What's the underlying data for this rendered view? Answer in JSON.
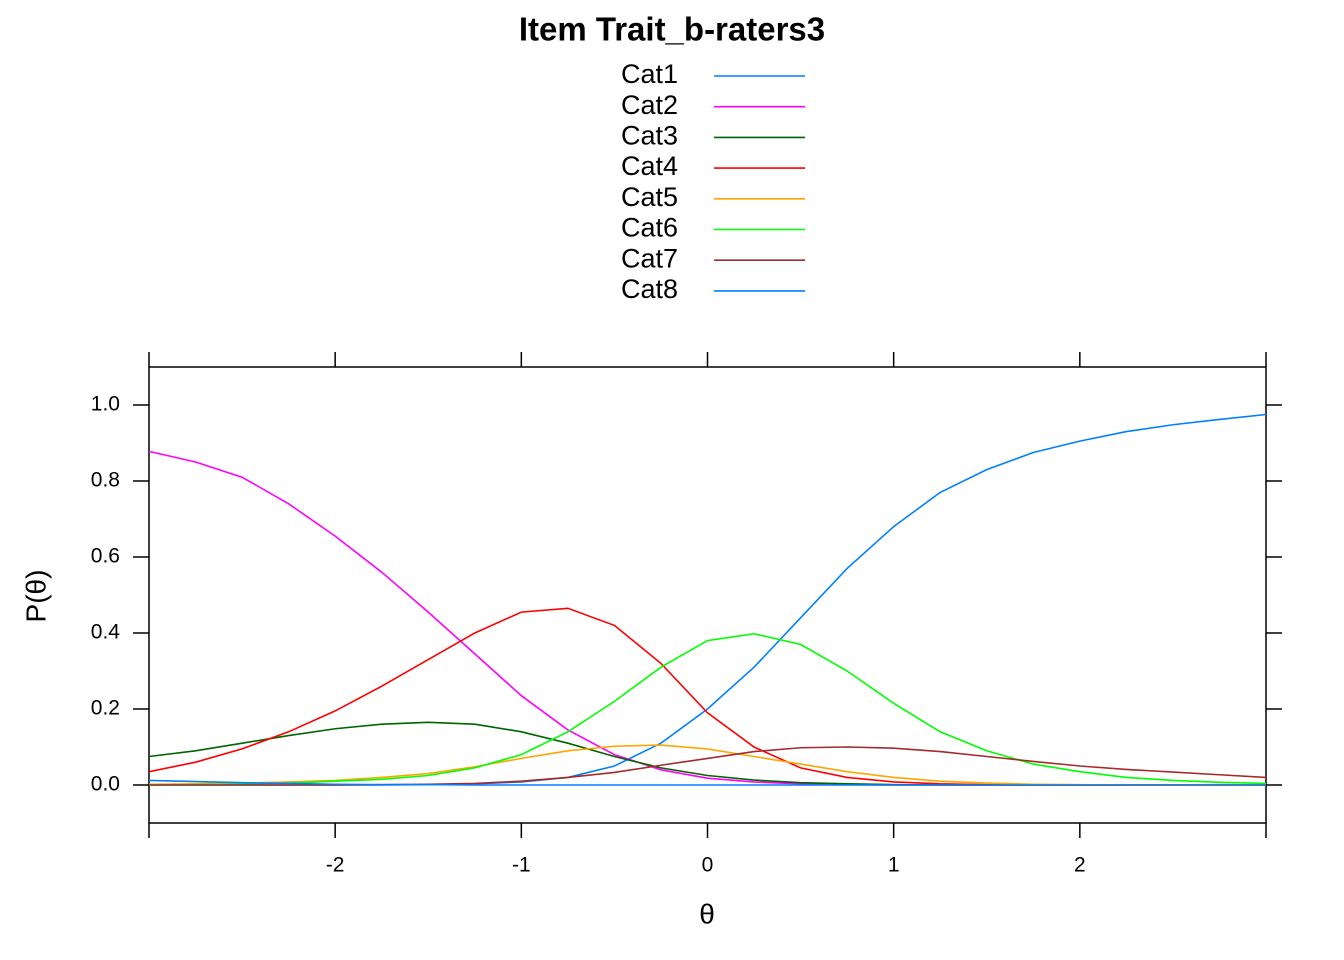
{
  "chart_data": {
    "type": "line",
    "title": "Item Trait_b-raters3",
    "x_label": "θ",
    "y_label": "P(θ)",
    "x": [
      -3,
      -2.75,
      -2.5,
      -2.25,
      -2,
      -1.75,
      -1.5,
      -1.25,
      -1,
      -0.75,
      -0.5,
      -0.25,
      0,
      0.25,
      0.5,
      0.75,
      1,
      1.25,
      1.5,
      1.75,
      2,
      2.25,
      2.5,
      2.75,
      3
    ],
    "series": [
      {
        "name": "Cat1",
        "color": "#0080ff",
        "values": [
          0,
          0,
          0,
          0,
          0,
          0,
          0.001,
          0.003,
          0.008,
          0.02,
          0.05,
          0.11,
          0.2,
          0.31,
          0.44,
          0.57,
          0.68,
          0.77,
          0.83,
          0.875,
          0.905,
          0.93,
          0.948,
          0.962,
          0.975
        ]
      },
      {
        "name": "Cat2",
        "color": "#ff00ff",
        "values": [
          0.878,
          0.85,
          0.81,
          0.74,
          0.655,
          0.56,
          0.455,
          0.345,
          0.235,
          0.145,
          0.08,
          0.04,
          0.018,
          0.008,
          0.003,
          0.001,
          0,
          0,
          0,
          0,
          0,
          0,
          0,
          0,
          0
        ]
      },
      {
        "name": "Cat3",
        "color": "#006400",
        "values": [
          0.075,
          0.09,
          0.11,
          0.13,
          0.148,
          0.16,
          0.165,
          0.16,
          0.14,
          0.11,
          0.075,
          0.045,
          0.025,
          0.013,
          0.006,
          0.003,
          0.001,
          0,
          0,
          0,
          0,
          0,
          0,
          0,
          0
        ]
      },
      {
        "name": "Cat4",
        "color": "#ff0000",
        "values": [
          0.035,
          0.06,
          0.095,
          0.14,
          0.195,
          0.26,
          0.33,
          0.4,
          0.455,
          0.465,
          0.42,
          0.32,
          0.19,
          0.1,
          0.045,
          0.02,
          0.008,
          0.003,
          0.001,
          0,
          0,
          0,
          0,
          0,
          0
        ]
      },
      {
        "name": "Cat5",
        "color": "#ffa500",
        "values": [
          0.002,
          0.003,
          0.005,
          0.008,
          0.012,
          0.02,
          0.03,
          0.048,
          0.07,
          0.09,
          0.102,
          0.105,
          0.095,
          0.075,
          0.055,
          0.035,
          0.02,
          0.01,
          0.005,
          0.002,
          0.001,
          0,
          0,
          0,
          0
        ]
      },
      {
        "name": "Cat6",
        "color": "#00ff00",
        "values": [
          0,
          0.001,
          0.002,
          0.005,
          0.01,
          0.015,
          0.025,
          0.045,
          0.08,
          0.14,
          0.22,
          0.31,
          0.38,
          0.398,
          0.37,
          0.3,
          0.215,
          0.14,
          0.09,
          0.055,
          0.035,
          0.02,
          0.012,
          0.007,
          0.004
        ]
      },
      {
        "name": "Cat7",
        "color": "#a52a2a",
        "values": [
          0,
          0,
          0,
          0,
          0,
          0.001,
          0.002,
          0.004,
          0.01,
          0.02,
          0.033,
          0.052,
          0.07,
          0.088,
          0.098,
          0.1,
          0.097,
          0.088,
          0.075,
          0.062,
          0.05,
          0.041,
          0.034,
          0.027,
          0.02
        ]
      },
      {
        "name": "Cat8",
        "color": "#0080ff",
        "values": [
          0.012,
          0.009,
          0.006,
          0.004,
          0.002,
          0.001,
          0.001,
          0,
          0,
          0,
          0,
          0,
          0,
          0,
          0,
          0,
          0,
          0,
          0,
          0,
          0,
          0,
          0,
          0,
          0
        ]
      }
    ],
    "xlim": [
      -3,
      3
    ],
    "ylim": [
      -0.1,
      1.1
    ],
    "xticks": [
      -2,
      -1,
      0,
      1,
      2
    ],
    "yticks": [
      {
        "value": 0,
        "label": "0.0"
      },
      0.2,
      0.4,
      0.6,
      0.8,
      {
        "value": 1,
        "label": "1.0"
      }
    ],
    "legend": "top"
  }
}
